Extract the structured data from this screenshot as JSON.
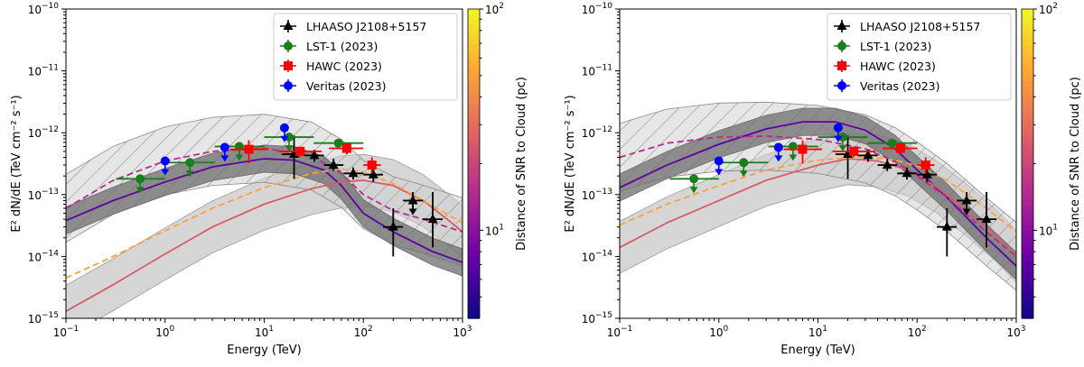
{
  "figure": {
    "colorbar_label": "Distance of SNR to Cloud (pc)",
    "colorbar_ticks": [
      {
        "value": 10,
        "label": "10",
        "exp": "1"
      },
      {
        "value": 100,
        "label": "10",
        "exp": "2"
      }
    ],
    "colorbar_range": [
      4,
      100
    ],
    "colormap": [
      "#0d0887",
      "#6a00a8",
      "#b12a90",
      "#e16462",
      "#fca636",
      "#f0f921"
    ]
  },
  "chart_data": [
    {
      "type": "scatter",
      "panel": "left",
      "log_x": true,
      "log_y": true,
      "xlim": [
        0.1,
        1000
      ],
      "ylim": [
        1e-15,
        1e-10
      ],
      "xlabel": "Energy (TeV)",
      "ylabel": "E² dN/dE (TeV cm⁻² s⁻¹)",
      "x_ticks": [
        {
          "base": "10",
          "exp": "−1"
        },
        {
          "base": "10",
          "exp": "0"
        },
        {
          "base": "10",
          "exp": "1"
        },
        {
          "base": "10",
          "exp": "2"
        },
        {
          "base": "10",
          "exp": "3"
        }
      ],
      "y_ticks": [
        {
          "base": "10",
          "exp": "−15"
        },
        {
          "base": "10",
          "exp": "−14"
        },
        {
          "base": "10",
          "exp": "−13"
        },
        {
          "base": "10",
          "exp": "−12"
        },
        {
          "base": "10",
          "exp": "−11"
        },
        {
          "base": "10",
          "exp": "−10"
        }
      ],
      "legend_position": "top-right",
      "legend": [
        {
          "label": "LHAASO J2108+5157",
          "color": "#000000",
          "marker": "triangle"
        },
        {
          "label": "LST-1 (2023)",
          "color": "#1a7f1a",
          "marker": "circle"
        },
        {
          "label": "HAWC (2023)",
          "color": "#ff0000",
          "marker": "square"
        },
        {
          "label": "Veritas (2023)",
          "color": "#0000ff",
          "marker": "circle"
        }
      ],
      "series": [
        {
          "name": "LHAASO J2108+5157",
          "color": "#000000",
          "marker": "triangle",
          "points": [
            {
              "x": 20,
              "y": 4.5e-13,
              "ylo": 1.8e-13,
              "yhi": 9e-13,
              "xlo": 15,
              "xhi": 25
            },
            {
              "x": 32,
              "y": 4.3e-13,
              "ylo": 3.4e-13,
              "yhi": 5.3e-13,
              "xlo": 25,
              "xhi": 40
            },
            {
              "x": 50,
              "y": 3e-13,
              "ylo": 2.4e-13,
              "yhi": 3.8e-13,
              "xlo": 40,
              "xhi": 63
            },
            {
              "x": 79,
              "y": 2.2e-13,
              "ylo": 1.75e-13,
              "yhi": 2.75e-13,
              "xlo": 63,
              "xhi": 100
            },
            {
              "x": 126,
              "y": 2.1e-13,
              "ylo": 1.6e-13,
              "yhi": 2.6e-13,
              "xlo": 100,
              "xhi": 158
            },
            {
              "x": 200,
              "y": 3e-14,
              "ylo": 1e-14,
              "yhi": 6e-14,
              "xlo": 158,
              "xhi": 251
            },
            {
              "x": 316,
              "y": 8e-14,
              "ylo": 5.5e-14,
              "yhi": 1.1e-13,
              "xlo": 251,
              "xhi": 398,
              "ul": true
            },
            {
              "x": 501,
              "y": 4e-14,
              "ylo": 1.4e-14,
              "yhi": 1.1e-13,
              "xlo": 398,
              "xhi": 631
            }
          ]
        },
        {
          "name": "LST-1 (2023)",
          "color": "#1a7f1a",
          "marker": "circle",
          "points": [
            {
              "x": 0.56,
              "y": 1.8e-13,
              "xlo": 0.32,
              "xhi": 1.0,
              "ul": true
            },
            {
              "x": 1.78,
              "y": 3.3e-13,
              "xlo": 1.0,
              "xhi": 3.16,
              "ul": true
            },
            {
              "x": 5.6,
              "y": 6e-13,
              "xlo": 3.16,
              "xhi": 10,
              "ul": true
            },
            {
              "x": 17.8,
              "y": 8.5e-13,
              "xlo": 10,
              "xhi": 31.6,
              "ul": true
            },
            {
              "x": 56,
              "y": 6.8e-13,
              "xlo": 31.6,
              "xhi": 100
            }
          ]
        },
        {
          "name": "HAWC (2023)",
          "color": "#ff0000",
          "marker": "square",
          "points": [
            {
              "x": 7,
              "y": 5.4e-13,
              "ylo": 3.2e-13,
              "yhi": 7.6e-13,
              "xlo": 4.5,
              "xhi": 11
            },
            {
              "x": 23,
              "y": 5e-13,
              "ylo": 4e-13,
              "yhi": 6e-13,
              "xlo": 14,
              "xhi": 38
            },
            {
              "x": 68,
              "y": 5.6e-13,
              "ylo": 4.5e-13,
              "yhi": 6.8e-13,
              "xlo": 45,
              "xhi": 100
            },
            {
              "x": 122,
              "y": 3e-13,
              "ylo": 2.2e-13,
              "yhi": 4e-13,
              "xlo": 100,
              "xhi": 150
            }
          ]
        },
        {
          "name": "Veritas (2023)",
          "color": "#0000ff",
          "marker": "circle",
          "points": [
            {
              "x": 1.0,
              "y": 3.5e-13,
              "ul": true
            },
            {
              "x": 4.0,
              "y": 5.8e-13,
              "ul": true
            },
            {
              "x": 16,
              "y": 1.2e-12,
              "ul": true
            }
          ]
        }
      ],
      "models": [
        {
          "style": "solid",
          "dist": 7,
          "band": "dark",
          "points": [
            [
              0.1,
              3.8e-14
            ],
            [
              0.3,
              8e-14
            ],
            [
              1,
              1.6e-13
            ],
            [
              3,
              2.8e-13
            ],
            [
              10,
              3.8e-13
            ],
            [
              20,
              3.6e-13
            ],
            [
              40,
              2.5e-13
            ],
            [
              60,
              1.4e-13
            ],
            [
              100,
              5e-14
            ],
            [
              200,
              2.5e-14
            ],
            [
              500,
              1.2e-14
            ],
            [
              1000,
              8e-15
            ]
          ]
        },
        {
          "style": "solid",
          "dist": 25,
          "band": "light",
          "points": [
            [
              0.1,
              1.3e-15
            ],
            [
              0.3,
              3.5e-15
            ],
            [
              1,
              1.1e-14
            ],
            [
              3,
              3e-14
            ],
            [
              10,
              7e-14
            ],
            [
              30,
              1.25e-13
            ],
            [
              60,
              1.6e-13
            ],
            [
              100,
              1.7e-13
            ],
            [
              200,
              1.4e-13
            ],
            [
              400,
              8e-14
            ],
            [
              700,
              4e-14
            ],
            [
              1000,
              2.5e-14
            ]
          ]
        },
        {
          "style": "dashed",
          "dist": 15,
          "band": "hatched",
          "points": [
            [
              0.1,
              6e-14
            ],
            [
              0.3,
              1.7e-13
            ],
            [
              1,
              3.5e-13
            ],
            [
              3,
              5e-13
            ],
            [
              10,
              5.6e-13
            ],
            [
              30,
              4.2e-13
            ],
            [
              60,
              2.2e-13
            ],
            [
              100,
              1e-13
            ],
            [
              200,
              5.5e-14
            ],
            [
              400,
              4e-14
            ],
            [
              1000,
              2.5e-14
            ]
          ]
        },
        {
          "style": "dashed",
          "dist": 50,
          "band": "none",
          "points": [
            [
              0.1,
              4.5e-15
            ],
            [
              0.3,
              1e-14
            ],
            [
              1,
              2.6e-14
            ],
            [
              3,
              6e-14
            ],
            [
              10,
              1.3e-13
            ],
            [
              30,
              2.2e-13
            ],
            [
              60,
              2.6e-13
            ],
            [
              100,
              2.3e-13
            ],
            [
              200,
              1.5e-13
            ],
            [
              400,
              8e-14
            ],
            [
              1000,
              3.5e-14
            ]
          ]
        }
      ]
    },
    {
      "type": "scatter",
      "panel": "right",
      "log_x": true,
      "log_y": true,
      "xlim": [
        0.1,
        1000
      ],
      "ylim": [
        1e-15,
        1e-10
      ],
      "xlabel": "Energy (TeV)",
      "ylabel": "E² dN/dE (TeV cm⁻² s⁻¹)",
      "x_ticks": [
        {
          "base": "10",
          "exp": "−1"
        },
        {
          "base": "10",
          "exp": "0"
        },
        {
          "base": "10",
          "exp": "1"
        },
        {
          "base": "10",
          "exp": "2"
        },
        {
          "base": "10",
          "exp": "3"
        }
      ],
      "y_ticks": [
        {
          "base": "10",
          "exp": "−15"
        },
        {
          "base": "10",
          "exp": "−14"
        },
        {
          "base": "10",
          "exp": "−13"
        },
        {
          "base": "10",
          "exp": "−12"
        },
        {
          "base": "10",
          "exp": "−11"
        },
        {
          "base": "10",
          "exp": "−10"
        }
      ],
      "legend_position": "top-right",
      "legend": [
        {
          "label": "LHAASO J2108+5157",
          "color": "#000000",
          "marker": "triangle"
        },
        {
          "label": "LST-1 (2023)",
          "color": "#1a7f1a",
          "marker": "circle"
        },
        {
          "label": "HAWC (2023)",
          "color": "#ff0000",
          "marker": "square"
        },
        {
          "label": "Veritas (2023)",
          "color": "#0000ff",
          "marker": "circle"
        }
      ],
      "series": [
        {
          "name": "LHAASO J2108+5157",
          "color": "#000000",
          "marker": "triangle",
          "points": [
            {
              "x": 20,
              "y": 4.5e-13,
              "ylo": 1.8e-13,
              "yhi": 9e-13,
              "xlo": 15,
              "xhi": 25
            },
            {
              "x": 32,
              "y": 4.3e-13,
              "ylo": 3.4e-13,
              "yhi": 5.3e-13,
              "xlo": 25,
              "xhi": 40
            },
            {
              "x": 50,
              "y": 3e-13,
              "ylo": 2.4e-13,
              "yhi": 3.8e-13,
              "xlo": 40,
              "xhi": 63
            },
            {
              "x": 79,
              "y": 2.2e-13,
              "ylo": 1.75e-13,
              "yhi": 2.75e-13,
              "xlo": 63,
              "xhi": 100
            },
            {
              "x": 126,
              "y": 2.1e-13,
              "ylo": 1.6e-13,
              "yhi": 2.6e-13,
              "xlo": 100,
              "xhi": 158
            },
            {
              "x": 200,
              "y": 3e-14,
              "ylo": 1e-14,
              "yhi": 6e-14,
              "xlo": 158,
              "xhi": 251
            },
            {
              "x": 316,
              "y": 8e-14,
              "ylo": 5.5e-14,
              "yhi": 1.1e-13,
              "xlo": 251,
              "xhi": 398,
              "ul": true
            },
            {
              "x": 501,
              "y": 4e-14,
              "ylo": 1.4e-14,
              "yhi": 1.1e-13,
              "xlo": 398,
              "xhi": 631
            }
          ]
        },
        {
          "name": "LST-1 (2023)",
          "color": "#1a7f1a",
          "marker": "circle",
          "points": [
            {
              "x": 0.56,
              "y": 1.8e-13,
              "xlo": 0.32,
              "xhi": 1.0,
              "ul": true
            },
            {
              "x": 1.78,
              "y": 3.3e-13,
              "xlo": 1.0,
              "xhi": 3.16,
              "ul": true
            },
            {
              "x": 5.6,
              "y": 6e-13,
              "xlo": 3.16,
              "xhi": 10,
              "ul": true
            },
            {
              "x": 17.8,
              "y": 8.5e-13,
              "xlo": 10,
              "xhi": 31.6,
              "ul": true
            },
            {
              "x": 56,
              "y": 6.8e-13,
              "xlo": 31.6,
              "xhi": 100
            }
          ]
        },
        {
          "name": "HAWC (2023)",
          "color": "#ff0000",
          "marker": "square",
          "points": [
            {
              "x": 7,
              "y": 5.4e-13,
              "ylo": 3.2e-13,
              "yhi": 7.6e-13,
              "xlo": 4.5,
              "xhi": 11
            },
            {
              "x": 23,
              "y": 5e-13,
              "ylo": 4e-13,
              "yhi": 6e-13,
              "xlo": 14,
              "xhi": 38
            },
            {
              "x": 68,
              "y": 5.6e-13,
              "ylo": 4.5e-13,
              "yhi": 6.8e-13,
              "xlo": 45,
              "xhi": 100
            },
            {
              "x": 122,
              "y": 3e-13,
              "ylo": 2.2e-13,
              "yhi": 4e-13,
              "xlo": 100,
              "xhi": 150
            }
          ]
        },
        {
          "name": "Veritas (2023)",
          "color": "#0000ff",
          "marker": "circle",
          "points": [
            {
              "x": 1.0,
              "y": 3.5e-13,
              "ul": true
            },
            {
              "x": 4.0,
              "y": 5.8e-13,
              "ul": true
            },
            {
              "x": 16,
              "y": 1.2e-12,
              "ul": true
            }
          ]
        }
      ],
      "models": [
        {
          "style": "solid",
          "dist": 7,
          "band": "dark",
          "points": [
            [
              0.1,
              1.3e-13
            ],
            [
              0.3,
              3e-13
            ],
            [
              1,
              6.5e-13
            ],
            [
              3,
              1.15e-12
            ],
            [
              7,
              1.5e-12
            ],
            [
              15,
              1.5e-12
            ],
            [
              30,
              1.1e-12
            ],
            [
              60,
              5.5e-13
            ],
            [
              100,
              2.5e-13
            ],
            [
              200,
              9e-14
            ],
            [
              500,
              2e-14
            ],
            [
              1000,
              7e-15
            ]
          ]
        },
        {
          "style": "solid",
          "dist": 25,
          "band": "light",
          "points": [
            [
              0.1,
              1.4e-14
            ],
            [
              0.3,
              3.5e-14
            ],
            [
              1,
              8e-14
            ],
            [
              3,
              1.7e-13
            ],
            [
              10,
              3e-13
            ],
            [
              20,
              3.8e-13
            ],
            [
              40,
              3.5e-13
            ],
            [
              80,
              2.5e-13
            ],
            [
              150,
              1.4e-13
            ],
            [
              300,
              6e-14
            ],
            [
              600,
              2.3e-14
            ],
            [
              1000,
              1e-14
            ]
          ]
        },
        {
          "style": "dashed",
          "dist": 15,
          "band": "hatched",
          "points": [
            [
              0.1,
              4e-13
            ],
            [
              0.3,
              6.8e-13
            ],
            [
              1,
              8.5e-13
            ],
            [
              3,
              8.8e-13
            ],
            [
              10,
              7.8e-13
            ],
            [
              30,
              5.5e-13
            ],
            [
              60,
              3.4e-13
            ],
            [
              100,
              2e-13
            ],
            [
              200,
              9e-14
            ],
            [
              500,
              2.5e-14
            ],
            [
              1000,
              1e-14
            ]
          ]
        },
        {
          "style": "dashed",
          "dist": 50,
          "band": "none",
          "points": [
            [
              0.1,
              3.2e-14
            ],
            [
              0.3,
              7e-14
            ],
            [
              1,
              1.4e-13
            ],
            [
              3,
              2.5e-13
            ],
            [
              10,
              3.6e-13
            ],
            [
              30,
              4.1e-13
            ],
            [
              60,
              3.6e-13
            ],
            [
              100,
              2.9e-13
            ],
            [
              200,
              1.7e-13
            ],
            [
              500,
              6e-14
            ],
            [
              1000,
              2.5e-14
            ]
          ]
        }
      ]
    }
  ]
}
